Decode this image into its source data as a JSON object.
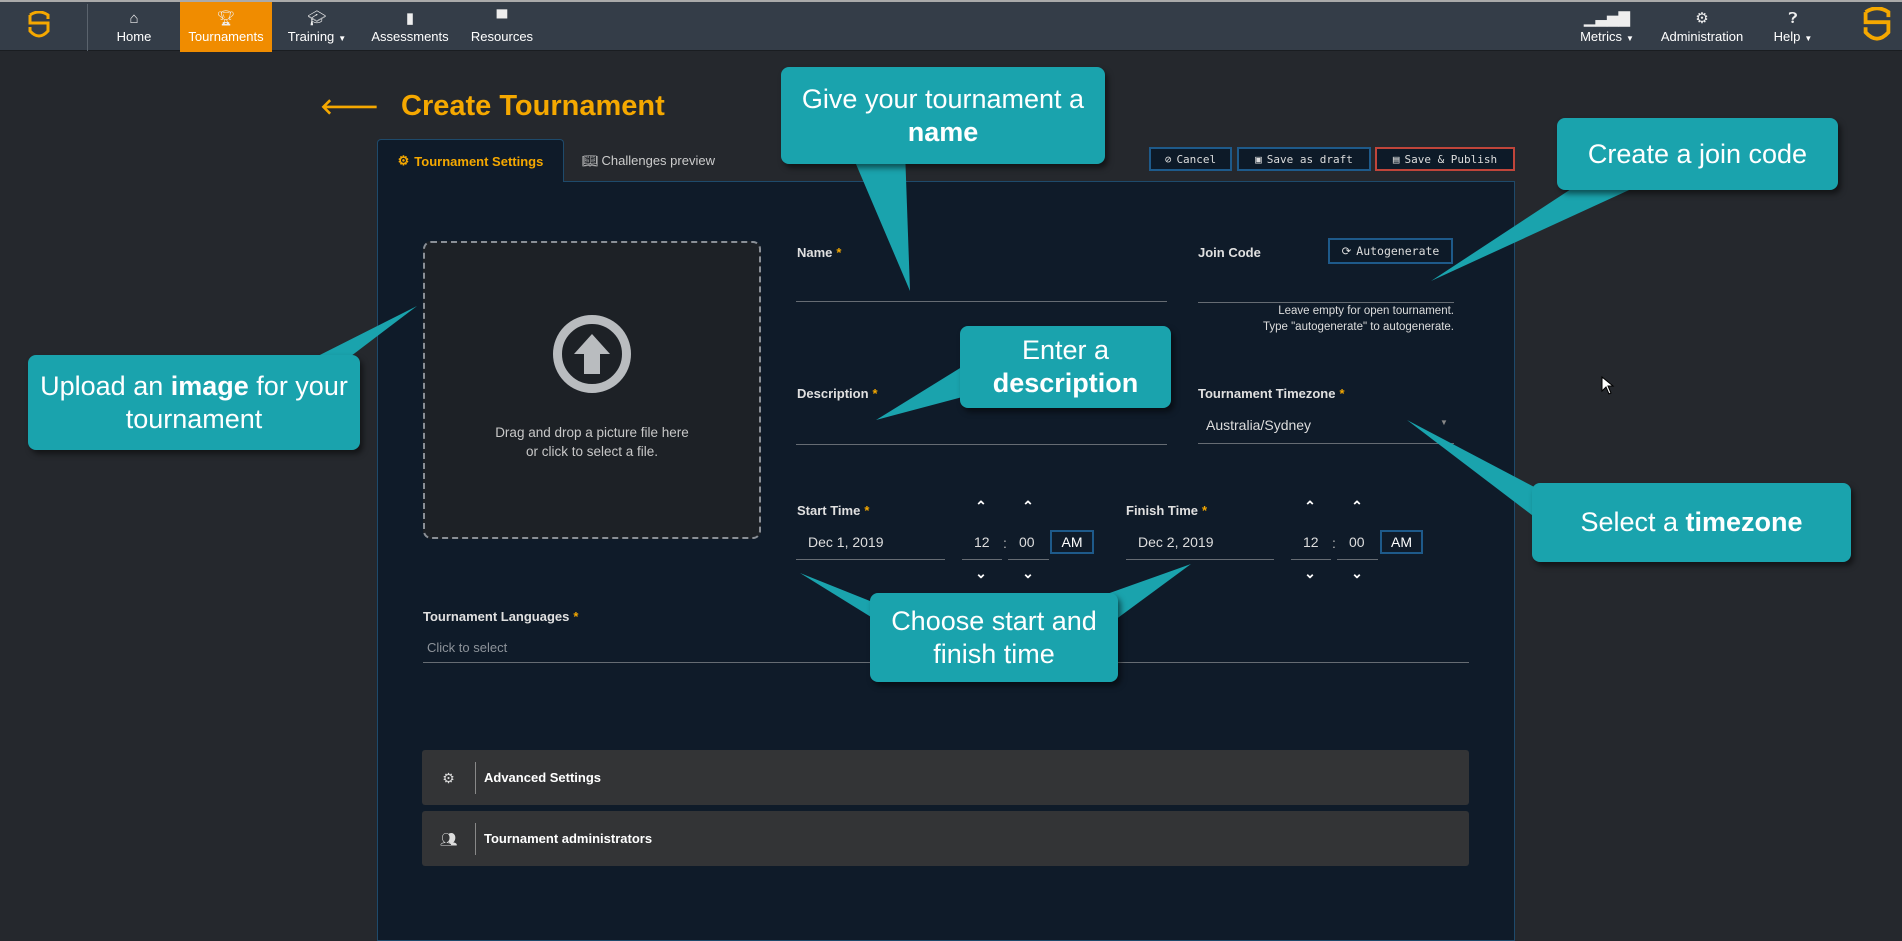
{
  "nav": {
    "items": [
      {
        "label": "Home",
        "icon": "home-icon"
      },
      {
        "label": "Tournaments",
        "icon": "trophy-icon",
        "active": true
      },
      {
        "label": "Training",
        "icon": "graduation-cap-icon",
        "dropdown": true
      },
      {
        "label": "Assessments",
        "icon": "file-icon"
      },
      {
        "label": "Resources",
        "icon": "podium-icon"
      }
    ],
    "right": [
      {
        "label": "Metrics",
        "icon": "signal-bars-icon",
        "dropdown": true
      },
      {
        "label": "Administration",
        "icon": "gear-icon"
      },
      {
        "label": "Help",
        "icon": "question-circle-icon",
        "dropdown": true
      }
    ],
    "active_color": "#f08c00"
  },
  "page": {
    "title": "Create Tournament"
  },
  "tabs": [
    {
      "label": "Tournament Settings",
      "icon": "gear-icon"
    },
    {
      "label": "Challenges preview",
      "icon": "book-icon"
    }
  ],
  "actions": {
    "cancel": "Cancel",
    "draft": "Save as draft",
    "publish": "Save & Publish"
  },
  "form": {
    "upload": {
      "line1": "Drag and drop a picture file here",
      "line2": "or click to select a file."
    },
    "name": {
      "label": "Name",
      "value": ""
    },
    "join_code": {
      "label": "Join Code",
      "button": "Autogenerate",
      "value": "",
      "help1": "Leave empty for open tournament.",
      "help2": "Type \"autogenerate\" to autogenerate."
    },
    "description": {
      "label": "Description",
      "value": ""
    },
    "timezone": {
      "label": "Tournament Timezone",
      "value": "Australia/Sydney"
    },
    "start": {
      "label": "Start Time",
      "date": "Dec 1, 2019",
      "hour": "12",
      "minute": "00",
      "ampm": "AM"
    },
    "finish": {
      "label": "Finish Time",
      "date": "Dec 2, 2019",
      "hour": "12",
      "minute": "00",
      "ampm": "AM"
    },
    "languages": {
      "label": "Tournament Languages",
      "placeholder": "Click to select"
    },
    "required_mark": "*"
  },
  "sections": [
    {
      "label": "Advanced Settings",
      "icon": "gears-icon"
    },
    {
      "label": "Tournament administrators",
      "icon": "users-icon"
    }
  ],
  "callouts": {
    "name": {
      "pre": "Give your tournament a ",
      "bold": "name"
    },
    "join": {
      "pre": "Create a join code"
    },
    "image": {
      "pre": "Upload an ",
      "bold": "image",
      "post": " for your tournament"
    },
    "description": {
      "pre": "Enter a ",
      "bold": "description"
    },
    "timezone": {
      "pre": "Select a ",
      "bold": "timezone"
    },
    "time": {
      "pre": "Choose start and finish time"
    },
    "color": "#1aa3ad"
  },
  "colors": {
    "accent": "#f5a800",
    "panel": "#0f1b29",
    "publish_border": "#c0453a"
  }
}
